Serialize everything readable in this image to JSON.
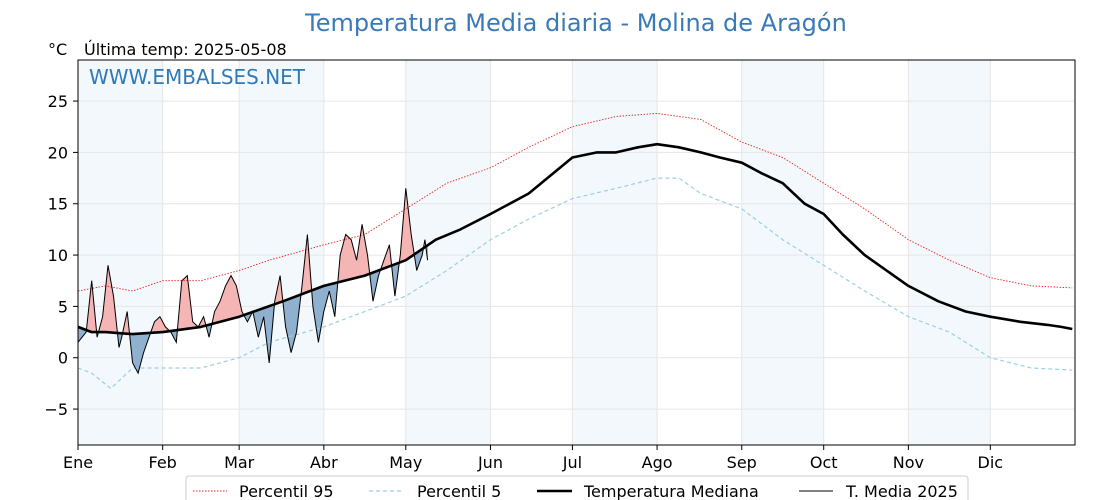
{
  "chart_data": {
    "type": "line",
    "title": "Temperatura Media diaria - Molina de Aragón",
    "ylabel": "°C",
    "subtitle": "Última temp: 2025-05-08",
    "watermark": "WWW.EMBALSES.NET",
    "ylim": [
      -8.5,
      29
    ],
    "xlim": [
      0,
      365
    ],
    "yticks": [
      25,
      20,
      15,
      10,
      5,
      0,
      -5
    ],
    "ytick_labels": [
      "25",
      "20",
      "15",
      "10",
      "5",
      "0",
      "−5"
    ],
    "months": [
      "Ene",
      "Feb",
      "Mar",
      "Abr",
      "May",
      "Jun",
      "Jul",
      "Ago",
      "Sep",
      "Oct",
      "Nov",
      "Dic"
    ],
    "month_starts": [
      0,
      31,
      59,
      90,
      120,
      151,
      181,
      212,
      243,
      273,
      304,
      334
    ],
    "grid": true,
    "legend_position": "bottom",
    "colors": {
      "p95": "#e8231f",
      "p5": "#9ccfe3",
      "median": "#000000",
      "current": "#000000",
      "above_fill": "#f5b5b5",
      "below_fill": "#8fb0cf",
      "band": "#f3f8fc",
      "title": "#3a7ab8"
    },
    "series": [
      {
        "name": "Percentil 95",
        "style": "dotted",
        "x": [
          0,
          10,
          20,
          31,
          45,
          59,
          70,
          90,
          105,
          120,
          135,
          151,
          165,
          181,
          197,
          212,
          228,
          243,
          258,
          273,
          288,
          304,
          319,
          334,
          349,
          364
        ],
        "values": [
          6.5,
          7.0,
          6.5,
          7.5,
          7.5,
          8.5,
          9.5,
          11.0,
          12.0,
          14.5,
          17.0,
          18.5,
          20.5,
          22.5,
          23.5,
          23.8,
          23.2,
          21.0,
          19.5,
          17.0,
          14.5,
          11.5,
          9.5,
          7.8,
          7.0,
          6.8
        ]
      },
      {
        "name": "Percentil 5",
        "style": "dashed",
        "x": [
          0,
          5,
          12,
          20,
          31,
          45,
          59,
          70,
          90,
          105,
          120,
          135,
          151,
          165,
          181,
          197,
          212,
          220,
          228,
          243,
          258,
          273,
          288,
          304,
          319,
          334,
          349,
          364
        ],
        "values": [
          -1.0,
          -1.5,
          -3.0,
          -1.0,
          -1.0,
          -1.0,
          0.0,
          1.5,
          3.0,
          4.5,
          6.0,
          8.5,
          11.5,
          13.5,
          15.5,
          16.5,
          17.5,
          17.5,
          16.0,
          14.5,
          11.5,
          9.0,
          6.5,
          4.0,
          2.5,
          0.0,
          -1.0,
          -1.2
        ]
      },
      {
        "name": "Temperatura Mediana",
        "style": "thick",
        "x": [
          0,
          5,
          10,
          20,
          31,
          45,
          59,
          75,
          90,
          105,
          120,
          131,
          140,
          151,
          165,
          181,
          190,
          197,
          205,
          212,
          220,
          228,
          235,
          243,
          250,
          258,
          266,
          273,
          280,
          288,
          296,
          304,
          315,
          325,
          334,
          345,
          355,
          360,
          364
        ],
        "values": [
          3.0,
          2.5,
          2.5,
          2.3,
          2.5,
          3.0,
          4.0,
          5.5,
          7.0,
          8.0,
          9.5,
          11.5,
          12.5,
          14.0,
          16.0,
          19.5,
          20.0,
          20.0,
          20.5,
          20.8,
          20.5,
          20.0,
          19.5,
          19.0,
          18.0,
          17.0,
          15.0,
          14.0,
          12.0,
          10.0,
          8.5,
          7.0,
          5.5,
          4.5,
          4.0,
          3.5,
          3.2,
          3.0,
          2.8
        ]
      },
      {
        "name": "T. Media 2025",
        "style": "thin",
        "x": [
          0,
          3,
          5,
          7,
          9,
          11,
          13,
          15,
          16,
          18,
          20,
          22,
          24,
          26,
          28,
          30,
          32,
          34,
          36,
          38,
          40,
          42,
          44,
          46,
          48,
          50,
          52,
          54,
          56,
          58,
          60,
          62,
          64,
          66,
          68,
          70,
          72,
          74,
          76,
          78,
          80,
          82,
          84,
          86,
          88,
          90,
          92,
          94,
          96,
          98,
          100,
          102,
          104,
          106,
          108,
          110,
          112,
          114,
          116,
          118,
          120,
          122,
          124,
          126,
          127,
          128
        ],
        "values": [
          1.5,
          2.5,
          7.5,
          2.0,
          4.0,
          9.0,
          6.0,
          1.0,
          2.0,
          4.5,
          -0.5,
          -1.5,
          0.5,
          2.0,
          3.5,
          4.0,
          3.0,
          2.5,
          1.5,
          7.5,
          8.0,
          3.5,
          3.0,
          4.0,
          2.0,
          4.5,
          5.5,
          7.0,
          8.0,
          7.0,
          4.5,
          3.5,
          4.5,
          2.0,
          4.0,
          -0.5,
          5.5,
          8.0,
          3.0,
          0.5,
          2.5,
          7.0,
          12.0,
          5.0,
          1.5,
          4.5,
          6.5,
          4.0,
          10.0,
          12.0,
          11.5,
          9.5,
          13.0,
          10.0,
          5.5,
          8.0,
          9.5,
          11.0,
          6.0,
          10.0,
          16.5,
          12.0,
          8.5,
          10.0,
          11.5,
          9.5
        ]
      }
    ]
  }
}
